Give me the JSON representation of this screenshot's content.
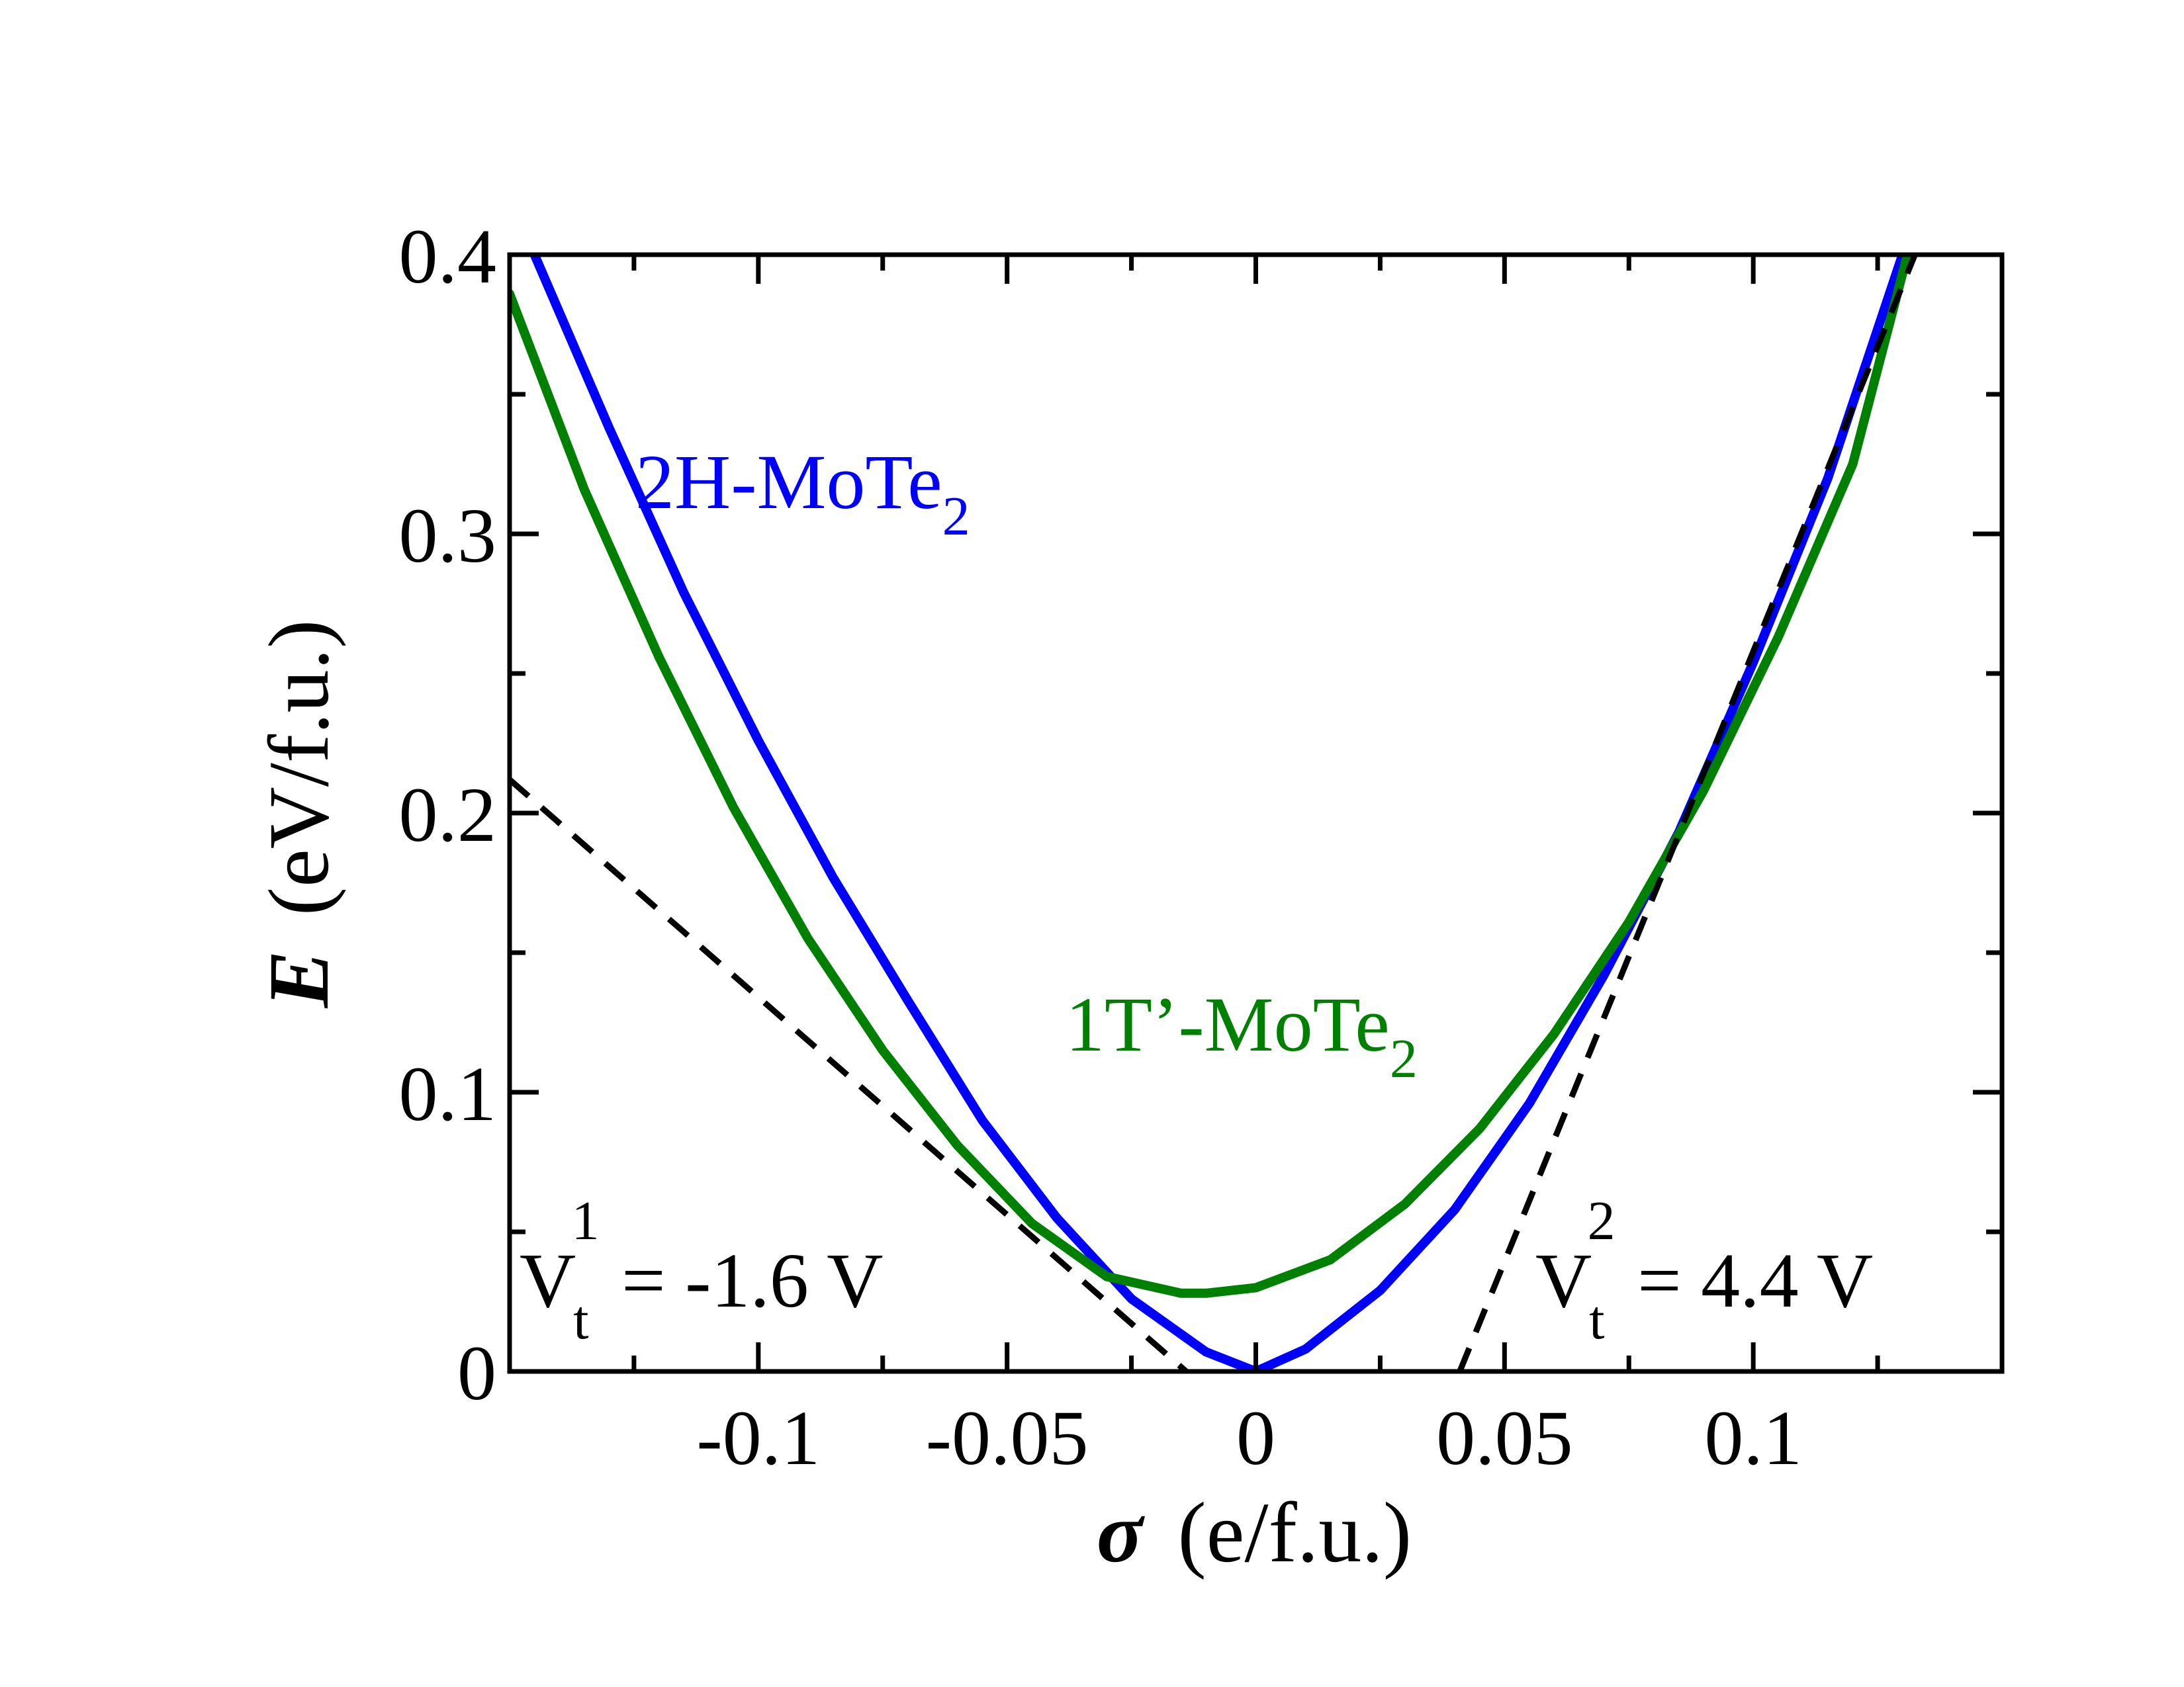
{
  "chart_data": {
    "type": "line",
    "title": "",
    "xlabel": {
      "symbol": "σ",
      "unit": "(e/f.u.)"
    },
    "ylabel": {
      "symbol": "E",
      "unit": "(eV/f.u.)"
    },
    "xlim": [
      -0.15,
      0.15
    ],
    "ylim": [
      0,
      0.4
    ],
    "x_ticks": [
      -0.1,
      -0.05,
      0,
      0.05,
      0.1
    ],
    "x_tick_labels": [
      "-0.1",
      "-0.05",
      "0",
      "0.05",
      "0.1"
    ],
    "y_ticks": [
      0,
      0.1,
      0.2,
      0.3,
      0.4
    ],
    "y_tick_labels": [
      "0",
      "0.1",
      "0.2",
      "0.3",
      "0.4"
    ],
    "grid": false,
    "legend": "none",
    "series": [
      {
        "name": "2H-MoTe2",
        "label_main": "2H-MoTe",
        "label_sub": "2",
        "color": "#0000ff",
        "style": "solid",
        "x": [
          -0.145,
          -0.13,
          -0.115,
          -0.1,
          -0.085,
          -0.07,
          -0.055,
          -0.04,
          -0.025,
          -0.01,
          0,
          0.01,
          0.025,
          0.04,
          0.055,
          0.07,
          0.085,
          0.1,
          0.115,
          0.13
        ],
        "y": [
          0.4,
          0.338,
          0.279,
          0.226,
          0.177,
          0.133,
          0.09,
          0.055,
          0.026,
          0.007,
          0,
          0.008,
          0.029,
          0.058,
          0.096,
          0.142,
          0.193,
          0.254,
          0.32,
          0.4
        ]
      },
      {
        "name": "1T'-MoTe2",
        "label_main": "1T’-MoTe",
        "label_sub": "2",
        "color": "#008000",
        "style": "solid",
        "x": [
          -0.15,
          -0.135,
          -0.12,
          -0.105,
          -0.09,
          -0.075,
          -0.06,
          -0.045,
          -0.03,
          -0.015,
          -0.01,
          0,
          0.015,
          0.03,
          0.045,
          0.06,
          0.075,
          0.09,
          0.105,
          0.12,
          0.131
        ],
        "y": [
          0.386,
          0.316,
          0.256,
          0.202,
          0.155,
          0.115,
          0.081,
          0.053,
          0.034,
          0.028,
          0.028,
          0.03,
          0.04,
          0.06,
          0.087,
          0.121,
          0.161,
          0.208,
          0.263,
          0.325,
          0.4
        ]
      },
      {
        "name": "",
        "color": "#000000",
        "style": "dashed",
        "x": [
          -0.15,
          -0.014
        ],
        "y": [
          0.212,
          0
        ]
      },
      {
        "name": "",
        "color": "#000000",
        "style": "dashed",
        "x": [
          0.041,
          0.1325
        ],
        "y": [
          0,
          0.4
        ]
      }
    ],
    "annotations": [
      {
        "main": "V",
        "sub": "t",
        "sup": "1",
        "rest": " = -1.6 V"
      },
      {
        "main": "V",
        "sub": "t",
        "sup": "2",
        "rest": " = 4.4 V"
      }
    ]
  }
}
